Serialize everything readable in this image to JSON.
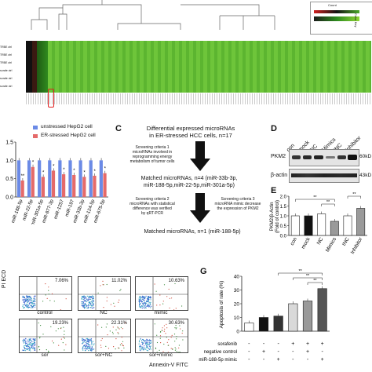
{
  "panel_a": {
    "row_labels": [
      "TRBE ctrl",
      "TRBE ctrl",
      "TRBE ctrl",
      "sorafe ctrl",
      "sorafe ctrl",
      "sorafe ctrl"
    ],
    "color_key_title": "Color Key",
    "color_key_axis": "Count",
    "colors": {
      "low": "#1a1a1a",
      "mid": "#2d8a1e",
      "high": "#8fd636",
      "highlight": "#e02020"
    }
  },
  "panel_b": {
    "legend": [
      "unstressed HepG2 cell",
      "ER-stressed HepG2 cell"
    ],
    "colors": {
      "unstressed": "#6b8ae6",
      "stressed": "#e56a6a"
    },
    "chart_data": {
      "type": "bar",
      "categories": [
        "miR-188-5p",
        "miR-22-5p",
        "miR-301a-5p",
        "miR-877-3p",
        "miR-1257",
        "miR-197",
        "miR-33b-3p",
        "miR-124-5p",
        "miR-675-5p"
      ],
      "series": [
        {
          "name": "unstressed HepG2 cell",
          "values": [
            1.0,
            1.0,
            1.0,
            1.0,
            1.0,
            1.0,
            1.0,
            1.0,
            1.0
          ]
        },
        {
          "name": "ER-stressed HepG2 cell",
          "values": [
            0.45,
            0.82,
            0.55,
            0.72,
            0.62,
            0.6,
            0.55,
            0.58,
            0.65
          ]
        }
      ],
      "significance": [
        "**",
        "*",
        "*",
        "*",
        "*",
        "*",
        "*",
        "*",
        "*"
      ],
      "yticks": [
        "0.0",
        "0.5",
        "1.0",
        "1.5"
      ],
      "ylim": [
        0,
        1.5
      ]
    }
  },
  "panel_c": {
    "letter": "C",
    "top": "Differential expressed microRNAs\nin ER-stressed HCC cells, n=17",
    "crit1": "Screening criteria 1\nmicroRNAs involved in\nreprogramming energy\nmetabolism of tumor cells",
    "matched4": "Matched microRNAs, n=4 (miR-33b-3p,\nmiR-188-5p,miR-22-5p,miR-301a-5p)",
    "crit2": "Screening criteria 2\nmicroRNAs with statistical\ndifference was verified\nby qRT-PCR",
    "crit3": "Screening criteria 3\nmicroRNA mimic decrease\nthe expression of PKM2",
    "matched1": "Matched microRNAs, n=1 (miR-188-5p)"
  },
  "panel_d": {
    "letter": "D",
    "lanes": [
      "con",
      "mock",
      "NC",
      "Mimics",
      "INC",
      "Inhibitor"
    ],
    "rows": [
      {
        "label": "PKM2",
        "size": "60kD"
      },
      {
        "label": "β-actin",
        "size": "43kD"
      }
    ]
  },
  "panel_e": {
    "letter": "E",
    "chart_data": {
      "type": "bar",
      "categories": [
        "con",
        "mock",
        "NC",
        "Mimics",
        "INC",
        "Inhibitor"
      ],
      "values": [
        1.0,
        1.0,
        1.1,
        0.72,
        1.0,
        1.38
      ],
      "ylabel": "PKM2/β-Actin\n(Fold of control)",
      "yticks": [
        "0.0",
        "0.5",
        "1.0",
        "1.5",
        "2.0"
      ],
      "ylim": [
        0,
        2.0
      ],
      "significance": [
        "**",
        "**",
        "**"
      ]
    },
    "fills": [
      "#ffffff",
      "#111111",
      "#ffffff",
      "#9a9a9a",
      "#ffffff",
      "#9a9a9a"
    ]
  },
  "panel_f": {
    "ylabel": "PI ECD",
    "xlabel": "Annexin-V FITC",
    "plots": [
      {
        "label": "control",
        "percent": "7.06%"
      },
      {
        "label": "NC",
        "percent": "11.02%"
      },
      {
        "label": "mimic",
        "percent": "10.63%"
      },
      {
        "label": "sor",
        "percent": "19.23%"
      },
      {
        "label": "sor+NC",
        "percent": "22.31%"
      },
      {
        "label": "sor+mimic",
        "percent": "30.63%"
      }
    ]
  },
  "panel_g": {
    "letter": "G",
    "chart_data": {
      "type": "bar",
      "values": [
        6,
        10,
        11,
        20,
        22,
        31
      ],
      "ylabel": "Apoptosis of rate (%)",
      "yticks": [
        "0",
        "10",
        "20",
        "30",
        "40"
      ],
      "ylim": [
        0,
        40
      ],
      "significance": [
        "**",
        "**",
        "**"
      ]
    },
    "fills": [
      "#ffffff",
      "#111111",
      "#333333",
      "#d9d9d9",
      "#9a9a9a",
      "#555555"
    ],
    "conditions": [
      {
        "label": "sorafenib",
        "marks": [
          "-",
          "-",
          "-",
          "+",
          "+",
          "+"
        ]
      },
      {
        "label": "negative control",
        "marks": [
          "-",
          "+",
          "-",
          "-",
          "+",
          "-"
        ]
      },
      {
        "label": "miR-188-5p mimic",
        "marks": [
          "-",
          "-",
          "+",
          "-",
          "-",
          "+"
        ]
      }
    ]
  }
}
